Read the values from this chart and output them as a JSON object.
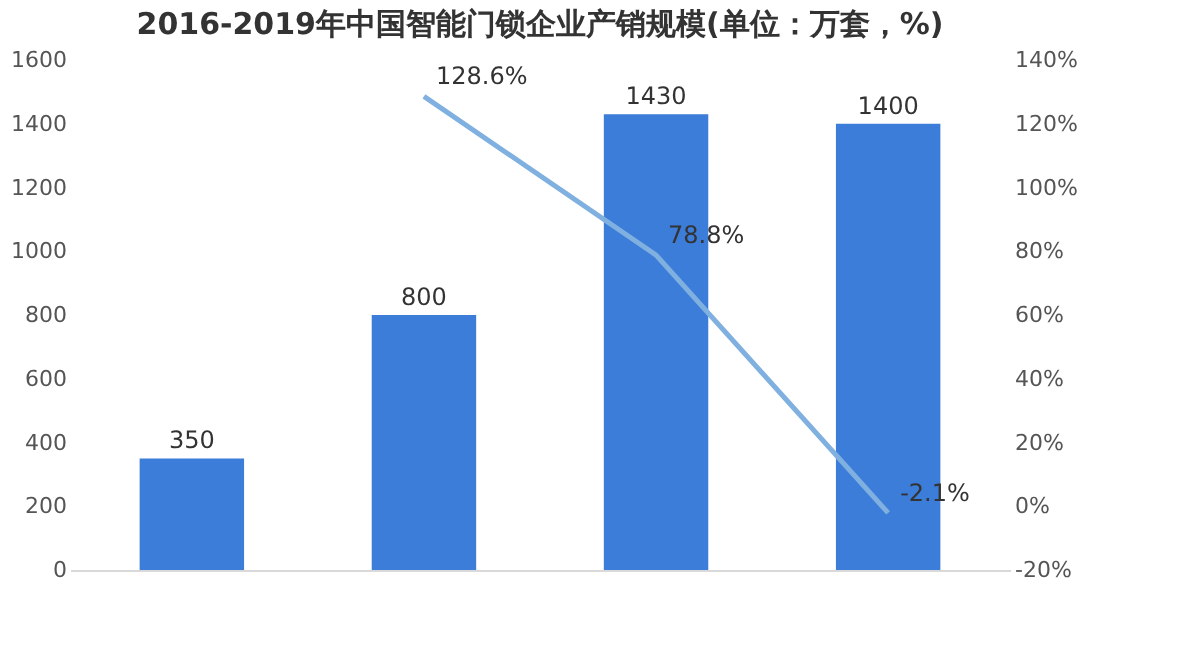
{
  "chart_data": {
    "type": "bar",
    "title": "2016-2019年中国智能门锁企业产销规模(单位：万套，%)",
    "categories": [
      null,
      null,
      null,
      null
    ],
    "series": [
      {
        "color": "#3b7dd8",
        "values": [
          350,
          800,
          1430,
          1400
        ]
      },
      {
        "type": "line",
        "axis": "y2",
        "color": "#7fb0e0",
        "values": [
          null,
          128.6,
          78.8,
          -2.1
        ],
        "value_labels": [
          null,
          "128.6%",
          "78.8%",
          "-2.1%"
        ]
      }
    ],
    "ylim": [
      0,
      1600
    ],
    "yticks": [
      0,
      200,
      400,
      600,
      800,
      1000,
      1200,
      1400,
      1600
    ],
    "y2lim": [
      -20,
      140
    ],
    "y2ticks": [
      {
        "value": -20,
        "label": "-20%"
      },
      {
        "value": 0,
        "label": "0%"
      },
      {
        "value": 20,
        "label": "20%"
      },
      {
        "value": 40,
        "label": "40%"
      },
      {
        "value": 60,
        "label": "60%"
      },
      {
        "value": 80,
        "label": "80%"
      },
      {
        "value": 100,
        "label": "100%"
      },
      {
        "value": 120,
        "label": "120%"
      },
      {
        "value": 140,
        "label": "140%"
      }
    ],
    "data_labels": true,
    "tick_labels": "y",
    "grid": false,
    "marker": "none"
  }
}
